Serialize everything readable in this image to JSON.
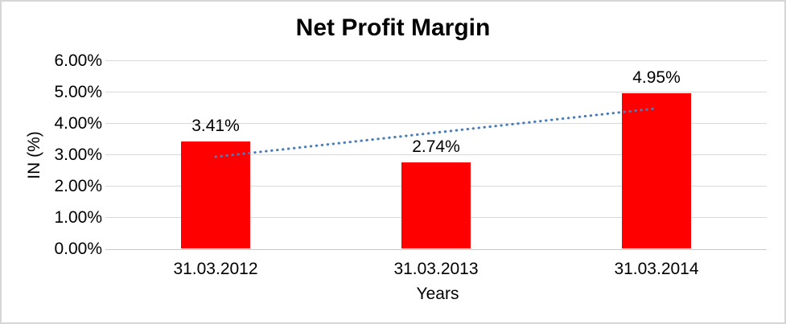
{
  "frame": {
    "background": "#ffffff",
    "border_color": "#d6d6d6"
  },
  "chart_data": {
    "type": "bar",
    "title": "Net Profit Margin",
    "xlabel": "Years",
    "ylabel": "IN (%)",
    "categories": [
      "31.03.2012",
      "31.03.2013",
      "31.03.2014"
    ],
    "values": [
      3.41,
      2.74,
      4.95
    ],
    "data_labels": [
      "3.41%",
      "2.74%",
      "4.95%"
    ],
    "ylim": [
      0,
      6
    ],
    "ytick_step": 1,
    "ytick_labels": [
      "0.00%",
      "1.00%",
      "2.00%",
      "3.00%",
      "4.00%",
      "5.00%",
      "6.00%"
    ],
    "grid": true,
    "legend": "none",
    "bar_color": "#ff0000",
    "gridline_color": "#d9d9d9",
    "text_color": "#000000",
    "trendline": {
      "type": "linear",
      "style": "dotted",
      "color": "#4a7ebb",
      "endpoints_pct": [
        2.93,
        4.47
      ]
    }
  }
}
